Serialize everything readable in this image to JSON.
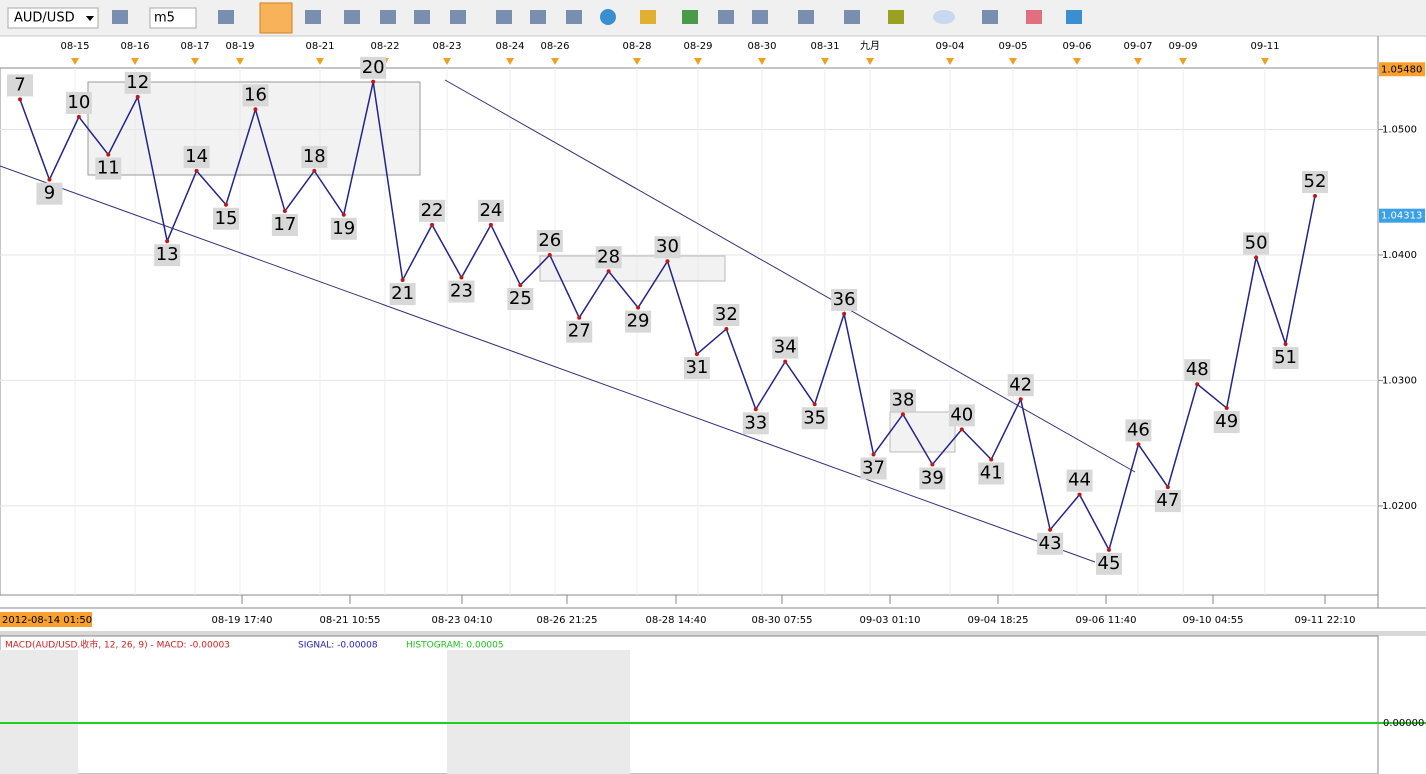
{
  "toolbar": {
    "symbol": "AUD/USD",
    "timeframe": "m5"
  },
  "chart_data": {
    "type": "line",
    "color": "#23238c",
    "categories": [
      "7",
      "9",
      "10",
      "11",
      "12",
      "13",
      "14",
      "15",
      "16",
      "17",
      "18",
      "19",
      "20",
      "21",
      "22",
      "23",
      "24",
      "25",
      "26",
      "27",
      "28",
      "29",
      "30",
      "31",
      "32",
      "33",
      "34",
      "35",
      "36",
      "37",
      "38",
      "39",
      "40",
      "41",
      "42",
      "43",
      "44",
      "45",
      "46",
      "47",
      "48",
      "49",
      "50",
      "51",
      "52"
    ],
    "values": [
      1.0524,
      1.046,
      1.051,
      1.048,
      1.0526,
      1.0411,
      1.0467,
      1.044,
      1.0516,
      1.0435,
      1.0467,
      1.0432,
      1.0538,
      1.038,
      1.0424,
      1.0382,
      1.0424,
      1.0376,
      1.04,
      1.035,
      1.0387,
      1.0358,
      1.0395,
      1.0321,
      1.0341,
      1.0277,
      1.0315,
      1.0281,
      1.0353,
      1.0241,
      1.0273,
      1.0233,
      1.0261,
      1.0237,
      1.0285,
      1.0181,
      1.0209,
      1.0165,
      1.0249,
      1.0215,
      1.0297,
      1.0278,
      1.0398,
      1.0329,
      1.0447
    ],
    "ylim": [
      1.0129,
      1.0549
    ],
    "yticks": [
      {
        "value": 1.02,
        "label": "1.0200"
      },
      {
        "value": 1.03,
        "label": "1.0300"
      },
      {
        "value": 1.04,
        "label": "1.0400"
      },
      {
        "value": 1.05,
        "label": "1.0500"
      }
    ],
    "grid": true,
    "high_tag": {
      "value": 1.0548,
      "label": "1.05480"
    },
    "last_tag": {
      "value": 1.04313,
      "label": "1.04313"
    }
  },
  "time_axis": {
    "top": [
      "08-15",
      "08-16",
      "08-17",
      "08-19",
      "08-21",
      "08-22",
      "08-23",
      "08-24",
      "08-26",
      "08-28",
      "08-29",
      "08-30",
      "08-31",
      "九月",
      "09-04",
      "09-05",
      "09-06",
      "09-07",
      "09-09",
      "09-11"
    ],
    "start": "2012-08-14 01:50",
    "bottom": [
      "08-19 17:40",
      "08-21 10:55",
      "08-23 04:10",
      "08-26 21:25",
      "08-28 14:40",
      "08-30 07:55",
      "09-03 01:10",
      "09-04 18:25",
      "09-06 11:40",
      "09-10 04:55",
      "09-11 22:10"
    ]
  },
  "macd": {
    "title": "MACD(AUD/USD.收市, 12, 26, 9) - MACD: -0.00003",
    "signal": "SIGNAL: -0.00008",
    "histogram": "HISTOGRAM: 0.00005",
    "zero_tick": {
      "value": 0,
      "label": "0.00000"
    }
  }
}
